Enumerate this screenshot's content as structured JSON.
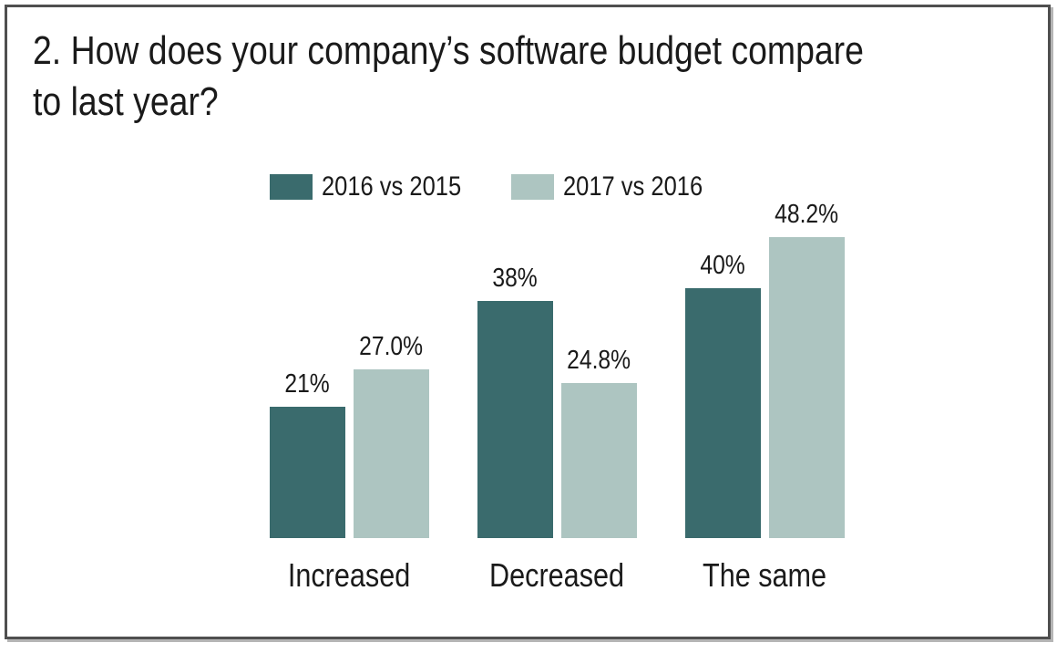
{
  "title": {
    "line1": "2. How does your company’s software budget compare",
    "line2": "to last year?"
  },
  "chart_data": {
    "type": "bar",
    "categories": [
      "Increased",
      "Decreased",
      "The same"
    ],
    "series": [
      {
        "name": "2016 vs 2015",
        "color": "#3a6b6d",
        "values": [
          21,
          38,
          40
        ],
        "labels": [
          "21%",
          "38%",
          "40%"
        ]
      },
      {
        "name": "2017 vs 2016",
        "color": "#adc5c1",
        "values": [
          27.0,
          24.8,
          48.2
        ],
        "labels": [
          "27.0%",
          "24.8%",
          "48.2%"
        ]
      }
    ],
    "xlabel": "",
    "ylabel": "",
    "ylim": [
      0,
      50
    ],
    "grid": false,
    "axis_lines": false,
    "legend_position": "top-left",
    "value_labels": "above-bars"
  },
  "colors": {
    "frame_border": "#4f4f4f",
    "frame_shadow": "#b5b5b5",
    "text": "#1a1a1a",
    "background": "#ffffff"
  }
}
